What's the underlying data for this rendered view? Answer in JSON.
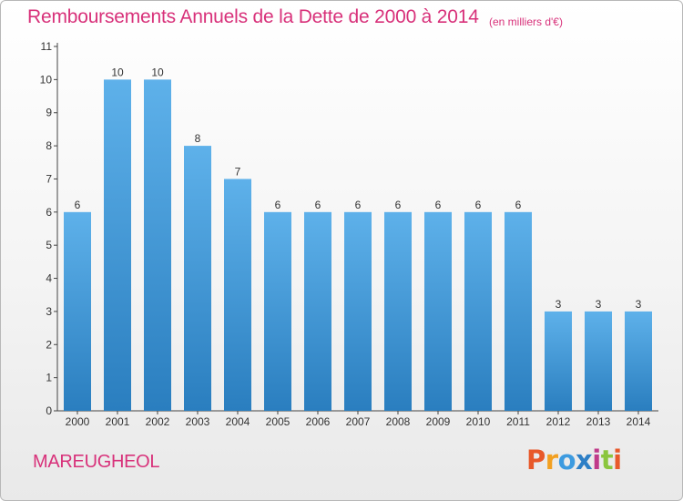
{
  "title": "Remboursements Annuels de la Dette de 2000 à 2014",
  "unit_note": "(en milliers d'€)",
  "commune": "MAREUGHEOL",
  "logo": {
    "text": "Proxiti",
    "colors": [
      "#e8592a",
      "#f2a021",
      "#3d9be0",
      "#2d7fc6",
      "#c03a8a",
      "#8bc63e",
      "#e8592a"
    ]
  },
  "colors": {
    "bar_top": "#5eb1ea",
    "bar_bottom": "#2a7ebf",
    "title": "#d8317a",
    "axis": "#555555",
    "grid": "#cccccc"
  },
  "chart_data": {
    "type": "bar",
    "title": "Remboursements Annuels de la Dette de 2000 à 2014",
    "xlabel": "",
    "ylabel": "",
    "categories": [
      "2000",
      "2001",
      "2002",
      "2003",
      "2004",
      "2005",
      "2006",
      "2007",
      "2008",
      "2009",
      "2010",
      "2011",
      "2012",
      "2013",
      "2014"
    ],
    "values": [
      6,
      10,
      10,
      8,
      7,
      6,
      6,
      6,
      6,
      6,
      6,
      6,
      3,
      3,
      3
    ],
    "data_labels": [
      "6",
      "10",
      "10",
      "8",
      "7",
      "6",
      "6",
      "6",
      "6",
      "6",
      "6",
      "6",
      "3",
      "3",
      "3"
    ],
    "ylim": [
      0,
      11
    ],
    "yticks": [
      "0",
      "1",
      "2",
      "3",
      "4",
      "5",
      "6",
      "7",
      "8",
      "9",
      "10",
      "11"
    ],
    "grid": false,
    "legend": "none"
  }
}
